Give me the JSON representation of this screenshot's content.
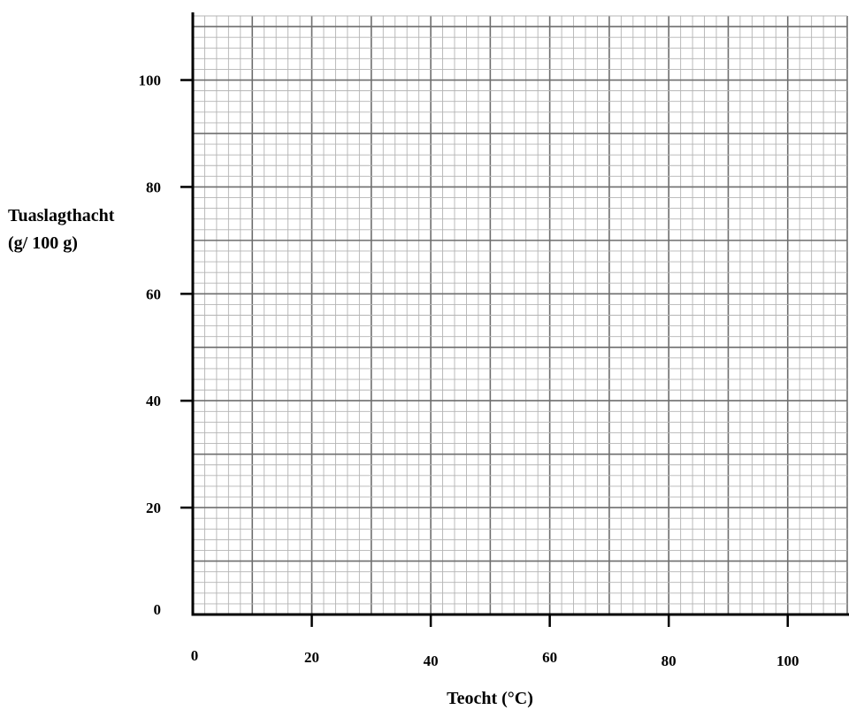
{
  "chart_data": {
    "type": "scatter",
    "title": "",
    "xlabel": "Teocht (°C)",
    "ylabel_lines": [
      "Tuaslagthacht",
      "(g/ 100 g)"
    ],
    "xlim": [
      0,
      110
    ],
    "ylim": [
      0,
      112
    ],
    "x_ticks": [
      0,
      20,
      40,
      60,
      80,
      100
    ],
    "x_tick_labels": [
      "0",
      "20",
      "40",
      "60",
      "80",
      "100"
    ],
    "y_ticks": [
      0,
      20,
      40,
      60,
      80,
      100
    ],
    "y_tick_labels": [
      "0",
      "20",
      "40",
      "60",
      "80",
      "100"
    ],
    "grid": true,
    "grid_major_step_x": 10,
    "grid_major_step_y": 10,
    "grid_minor_step_x": 2,
    "grid_minor_step_y": 2,
    "series": []
  }
}
